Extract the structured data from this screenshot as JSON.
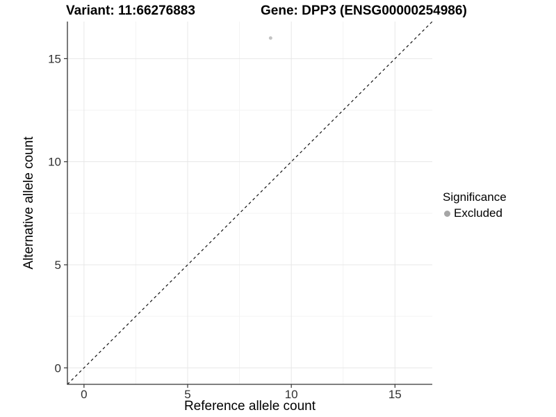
{
  "title": {
    "variant": "Variant: 11:66276883",
    "gene": "Gene: DPP3 (ENSG00000254986)"
  },
  "axes": {
    "x_label": "Reference allele count",
    "y_label": "Alternative allele count"
  },
  "legend": {
    "title": "Significance",
    "items": [
      {
        "label": "Excluded",
        "color": "#a6a6a6",
        "marker": "circle"
      }
    ]
  },
  "chart_data": {
    "type": "scatter",
    "title": "Variant: 11:66276883 / Gene: DPP3 (ENSG00000254986)",
    "xlabel": "Reference allele count",
    "ylabel": "Alternative allele count",
    "xlim": [
      -0.8,
      16.8
    ],
    "ylim": [
      -0.8,
      16.8
    ],
    "x_ticks": [
      0,
      5,
      10,
      15
    ],
    "y_ticks": [
      0,
      5,
      10,
      15
    ],
    "x_minor_ticks": [
      2.5,
      7.5,
      12.5
    ],
    "y_minor_ticks": [
      2.5,
      7.5,
      12.5
    ],
    "grid": "major+minor",
    "legend_position": "right",
    "series": [
      {
        "name": "Excluded",
        "color": "#c3c3c3",
        "marker_radius": 2.5,
        "points": [
          {
            "x": 9,
            "y": 16
          }
        ]
      }
    ],
    "reference_line": {
      "slope": 1,
      "intercept": 0,
      "style": "dashed",
      "color": "#111111"
    },
    "style": {
      "major_grid_color": "#e7e7e7",
      "minor_grid_color": "#f3f3f3",
      "axis_line_color": "#333333",
      "tick_color": "#333333",
      "tick_label_color": "#303030",
      "tick_label_size": 17
    }
  }
}
